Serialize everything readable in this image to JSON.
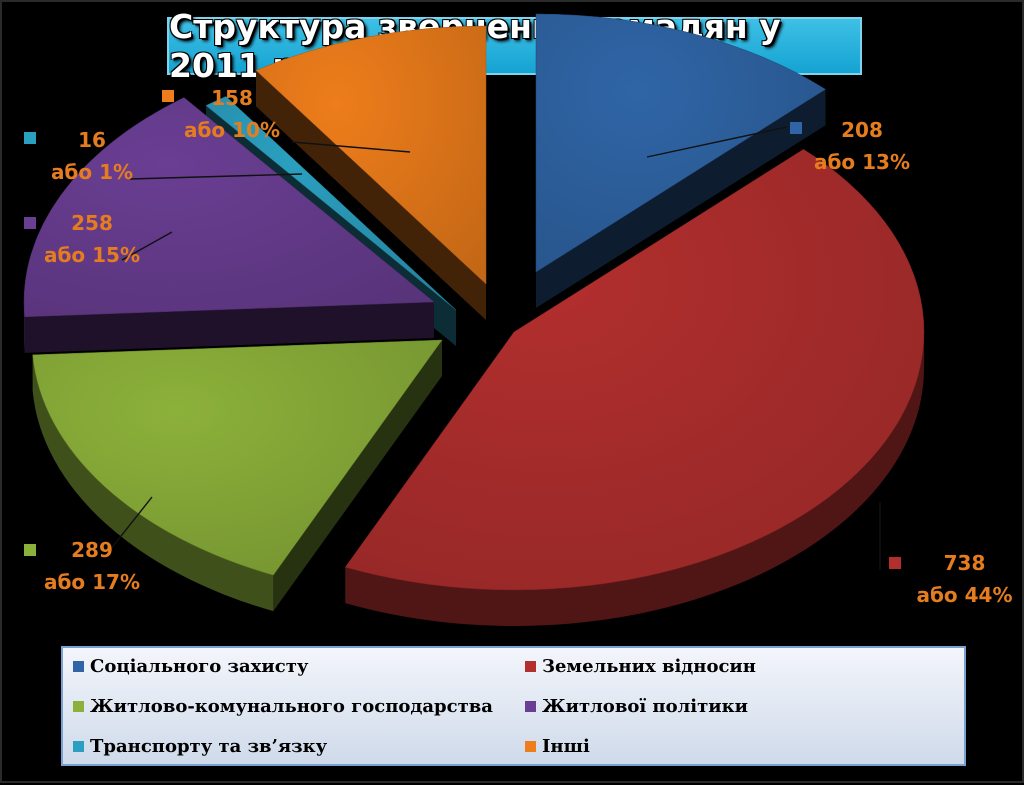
{
  "title": "Структура звернень громадян у 2011 році",
  "chart_data": {
    "type": "pie",
    "title": "Структура звернень громадян у 2011 році",
    "series": [
      {
        "name": "Соціального  захисту",
        "value": 208,
        "percent_label": "або 13%",
        "color": "#2f65a6"
      },
      {
        "name": "Земельних  відносин",
        "value": 738,
        "percent_label": "або 44%",
        "color": "#b22f2e"
      },
      {
        "name": "Житлово-комунального  господарства",
        "value": 289,
        "percent_label": "або 17%",
        "color": "#8cb13a"
      },
      {
        "name": "Житлової  політики",
        "value": 258,
        "percent_label": "або 15%",
        "color": "#6a3e93"
      },
      {
        "name": "Транспорту  та  зв’язку",
        "value": 16,
        "percent_label": "або 1%",
        "color": "#2b9fbf"
      },
      {
        "name": "Інші",
        "value": 158,
        "percent_label": "або 10%",
        "color": "#ee7d1b"
      }
    ],
    "legend_position": "bottom",
    "label_color": "#e57d1f"
  }
}
